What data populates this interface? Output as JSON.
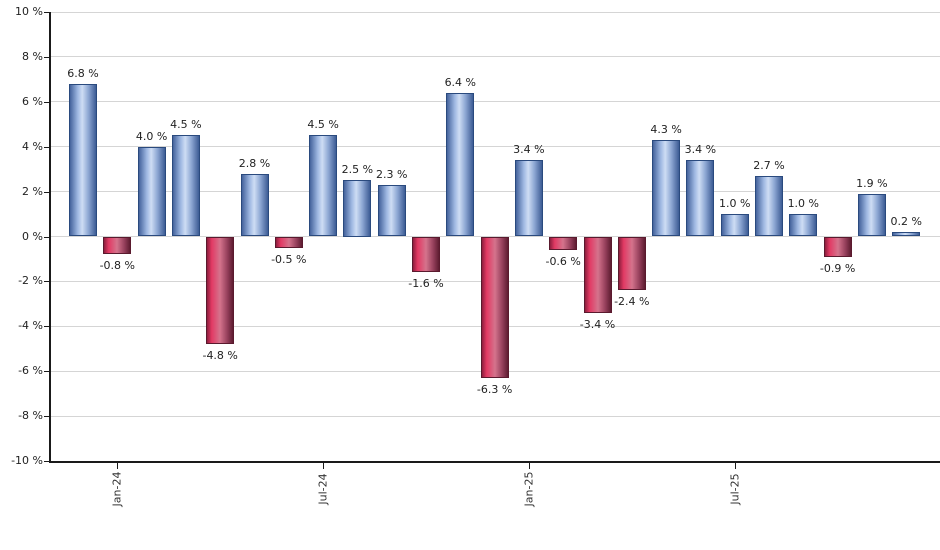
{
  "chart_data": {
    "type": "bar",
    "title": "",
    "unit": "%",
    "bars": [
      {
        "value": 6.8,
        "label": "6.8 %"
      },
      {
        "value": -0.8,
        "label": "-0.8 %"
      },
      {
        "value": 4.0,
        "label": "4.0 %"
      },
      {
        "value": 4.5,
        "label": "4.5 %"
      },
      {
        "value": -4.8,
        "label": "-4.8 %"
      },
      {
        "value": 2.8,
        "label": "2.8 %"
      },
      {
        "value": -0.5,
        "label": "-0.5 %"
      },
      {
        "value": 4.5,
        "label": "4.5 %"
      },
      {
        "value": 2.5,
        "label": "2.5 %"
      },
      {
        "value": 2.3,
        "label": "2.3 %"
      },
      {
        "value": -1.6,
        "label": "-1.6 %"
      },
      {
        "value": 6.4,
        "label": "6.4 %"
      },
      {
        "value": -6.3,
        "label": "-6.3 %"
      },
      {
        "value": 3.4,
        "label": "3.4 %"
      },
      {
        "value": -0.6,
        "label": "-0.6 %"
      },
      {
        "value": -3.4,
        "label": "-3.4 %"
      },
      {
        "value": -2.4,
        "label": "-2.4 %"
      },
      {
        "value": 4.3,
        "label": "4.3 %"
      },
      {
        "value": 3.4,
        "label": "3.4 %"
      },
      {
        "value": 1.0,
        "label": "1.0 %"
      },
      {
        "value": 2.7,
        "label": "2.7 %"
      },
      {
        "value": 1.0,
        "label": "1.0 %"
      },
      {
        "value": -0.9,
        "label": "-0.9 %"
      },
      {
        "value": 1.9,
        "label": "1.9 %"
      },
      {
        "value": 0.2,
        "label": "0.2 %"
      }
    ],
    "y_axis": {
      "min": -10,
      "max": 10,
      "step": 2,
      "tick_labels": [
        "10 %",
        "8 %",
        "6 %",
        "4 %",
        "2 %",
        "0 %",
        "-2 %",
        "-4 %",
        "-6 %",
        "-8 %",
        "-10 %"
      ]
    },
    "x_axis": {
      "ticks": [
        {
          "bar_index": 1,
          "label": "Jan-24"
        },
        {
          "bar_index": 7,
          "label": "Jul-24"
        },
        {
          "bar_index": 13,
          "label": "Jan-25"
        },
        {
          "bar_index": 19,
          "label": "Jul-25"
        }
      ]
    },
    "layout_hints": {
      "grid": true,
      "legend": "none"
    },
    "colors": {
      "positive_gradient": [
        "#44639C",
        "#9FB8E2",
        "#CEDDF4",
        "#8FA9D4",
        "#3D5C95"
      ],
      "positive_border": "#2A4A7E",
      "negative_gradient": [
        "#8E1E3E",
        "#E23A64",
        "#D4738C",
        "#96405C",
        "#5E1C31"
      ],
      "negative_border": "#5A1A2E",
      "grid": "#D5D5D5",
      "axis": "#1A1A1A",
      "label_text": "#222222",
      "tick_text": "#333333"
    }
  }
}
